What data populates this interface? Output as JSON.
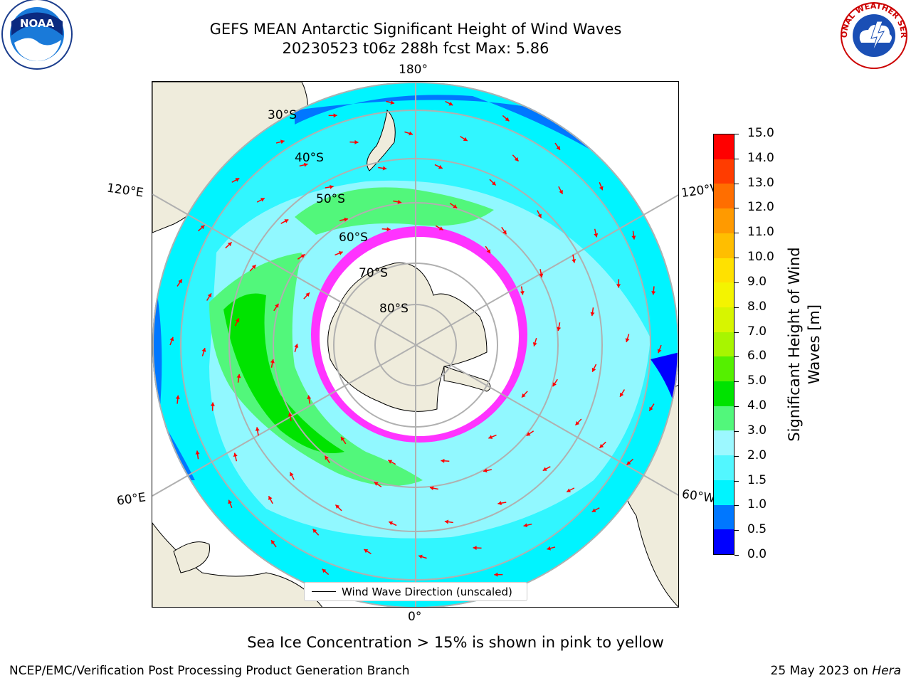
{
  "header": {
    "title_line1": "GEFS MEAN Antarctic Significant Height of Wind Waves",
    "title_line2": "20230523 t06z 288h fcst   Max: 5.86"
  },
  "logos": {
    "left": "noaa-logo",
    "left_text": "NOAA",
    "right": "national-weather-service-logo",
    "right_text": "NATIONAL WEATHER SERVICE"
  },
  "map": {
    "projection": "south-polar-stereographic",
    "longitude_labels": {
      "top": "180°",
      "bottom": "0°",
      "upper_left": "120°E",
      "lower_left": "60°E",
      "upper_right": "120°W",
      "lower_right": "60°W"
    },
    "latitude_labels": [
      "30°S",
      "40°S",
      "50°S",
      "60°S",
      "70°S",
      "80°S"
    ],
    "legend_label": "Wind Wave Direction (unscaled)",
    "colors": {
      "land": "#efecdc",
      "ocean_low": "#00f4ff",
      "ocean_mid": "#9cf8ff",
      "ocean_high": "#52f77b",
      "ocean_peak": "#00e300",
      "coast_blue": "#0077ff",
      "ice": "#ff33ff",
      "arrow": "#ff0000",
      "grid": "#b0b0b0"
    }
  },
  "colorbar": {
    "label": "Significant Height of Wind Waves [m]",
    "ticks": [
      "0.0",
      "0.5",
      "1.0",
      "1.5",
      "2.0",
      "3.0",
      "4.0",
      "5.0",
      "6.0",
      "7.0",
      "8.0",
      "9.0",
      "10.0",
      "11.0",
      "12.0",
      "13.0",
      "14.0",
      "15.0"
    ],
    "colors": [
      "#0000ff",
      "#0077ff",
      "#00f4ff",
      "#52f7ff",
      "#9cf8ff",
      "#52f77b",
      "#00e300",
      "#55f000",
      "#a8f500",
      "#d7f500",
      "#f4f400",
      "#ffe100",
      "#ffbe00",
      "#ff9a00",
      "#ff6e00",
      "#ff3c00",
      "#ff0000"
    ]
  },
  "notes": {
    "ice": "Sea Ice Concentration > 15% is shown in pink to yellow"
  },
  "footer": {
    "left": "NCEP/EMC/Verification Post Processing Product Generation Branch",
    "right_prefix": "25 May 2023 on ",
    "right_machine": "Hera"
  }
}
